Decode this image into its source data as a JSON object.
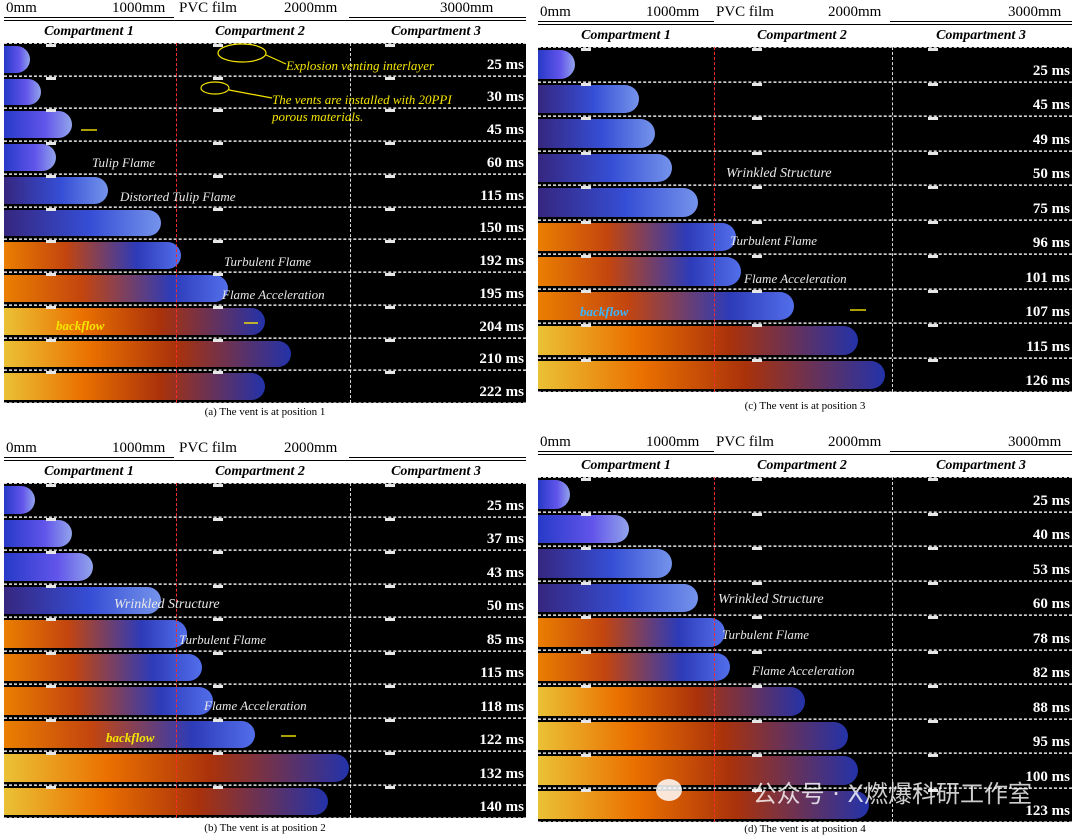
{
  "scale": {
    "mm0": "0mm",
    "mm1000": "1000mm",
    "pvc": "PVC film",
    "mm2000": "2000mm",
    "mm3000": "3000mm"
  },
  "headers": {
    "c1": "Compartment 1",
    "c2": "Compartment 2",
    "c3": "Compartment 3"
  },
  "panels": [
    {
      "id": "a",
      "caption": "(a) The vent is at position 1",
      "times": [
        "25 ms",
        "30 ms",
        "45 ms",
        "60 ms",
        "115 ms",
        "150 ms",
        "192 ms",
        "195 ms",
        "204 ms",
        "210 ms",
        "222 ms"
      ],
      "flame_extent": [
        0.05,
        0.07,
        0.13,
        0.1,
        0.2,
        0.3,
        0.34,
        0.43,
        0.5,
        0.55,
        0.5
      ],
      "notes": {
        "explosion": "Explosion venting interlayer",
        "vents": "The vents are installed with 20PPI",
        "porous": "porous materials.",
        "tulip": "Tulip Flame",
        "distorted": "Distorted Tulip Flame",
        "turbulent": "Turbulent Flame",
        "accel": "Flame Acceleration",
        "backflow": "backflow"
      }
    },
    {
      "id": "b",
      "caption": "(b) The vent is at position 2",
      "times": [
        "25 ms",
        "37 ms",
        "43 ms",
        "50 ms",
        "85 ms",
        "115 ms",
        "118 ms",
        "122 ms",
        "132 ms",
        "140 ms"
      ],
      "flame_extent": [
        0.06,
        0.13,
        0.17,
        0.3,
        0.35,
        0.38,
        0.4,
        0.48,
        0.66,
        0.62
      ],
      "notes": {
        "wrinkled": "Wrinkled Structure",
        "turbulent": "Turbulent Flame",
        "accel": "Flame Acceleration",
        "backflow": "backflow"
      }
    },
    {
      "id": "c",
      "caption": "(c) The vent is at position 3",
      "times": [
        "25 ms",
        "45 ms",
        "49 ms",
        "50 ms",
        "75 ms",
        "96 ms",
        "101 ms",
        "107 ms",
        "115 ms",
        "126 ms"
      ],
      "flame_extent": [
        0.07,
        0.19,
        0.22,
        0.25,
        0.3,
        0.37,
        0.38,
        0.48,
        0.6,
        0.65
      ],
      "notes": {
        "wrinkled": "Wrinkled Structure",
        "turbulent": "Turbulent Flame",
        "accel": "Flame Acceleration",
        "backflow": "backflow"
      }
    },
    {
      "id": "d",
      "caption": "(d) The vent is at position 4",
      "times": [
        "25 ms",
        "40 ms",
        "53 ms",
        "60 ms",
        "78 ms",
        "82 ms",
        "88 ms",
        "95 ms",
        "100 ms",
        "123 ms"
      ],
      "flame_extent": [
        0.06,
        0.17,
        0.25,
        0.3,
        0.35,
        0.36,
        0.5,
        0.58,
        0.6,
        0.62
      ],
      "notes": {
        "wrinkled": "Wrinkled Structure",
        "turbulent": "Turbulent Flame",
        "accel": "Flame Acceleration"
      }
    }
  ],
  "watermark": "公众号 · X燃爆科研工作室"
}
